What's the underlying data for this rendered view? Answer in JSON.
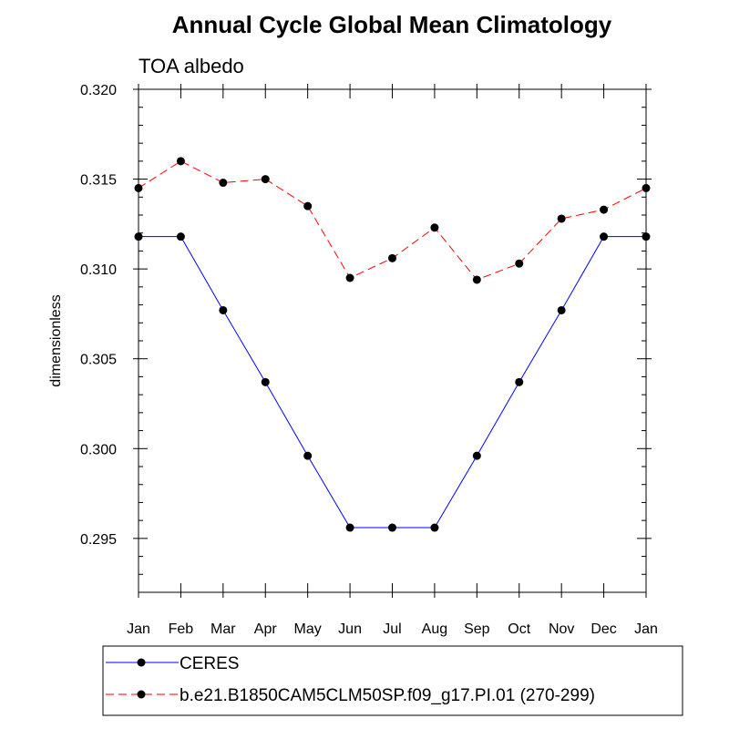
{
  "chart_data": {
    "type": "line",
    "title": "Annual Cycle Global Mean Climatology",
    "subtitle": "TOA albedo",
    "xlabel": "",
    "ylabel": "dimensionless",
    "categories": [
      "Jan",
      "Feb",
      "Mar",
      "Apr",
      "May",
      "Jun",
      "Jul",
      "Aug",
      "Sep",
      "Oct",
      "Nov",
      "Dec",
      "Jan"
    ],
    "ylim": [
      0.292,
      0.32
    ],
    "yticks": [
      "0.295",
      "0.300",
      "0.305",
      "0.310",
      "0.315",
      "0.320"
    ],
    "ytick_values": [
      0.295,
      0.3,
      0.305,
      0.31,
      0.315,
      0.32
    ],
    "legend_position": "bottom",
    "series": [
      {
        "name": "CERES",
        "color": "#0000ff",
        "dash": "solid",
        "values": [
          0.3118,
          0.3118,
          0.3077,
          0.3037,
          0.2996,
          0.2956,
          0.2956,
          0.2956,
          0.2996,
          0.3037,
          0.3077,
          0.3118,
          0.3118
        ]
      },
      {
        "name": "b.e21.B1850CAM5CLM50SP.f09_g17.PI.01 (270-299)",
        "color": "#ff0000",
        "dash": "dashed",
        "values": [
          0.3145,
          0.316,
          0.3148,
          0.315,
          0.3135,
          0.3095,
          0.3106,
          0.3123,
          0.3094,
          0.3103,
          0.3128,
          0.3133,
          0.3145
        ]
      }
    ]
  }
}
